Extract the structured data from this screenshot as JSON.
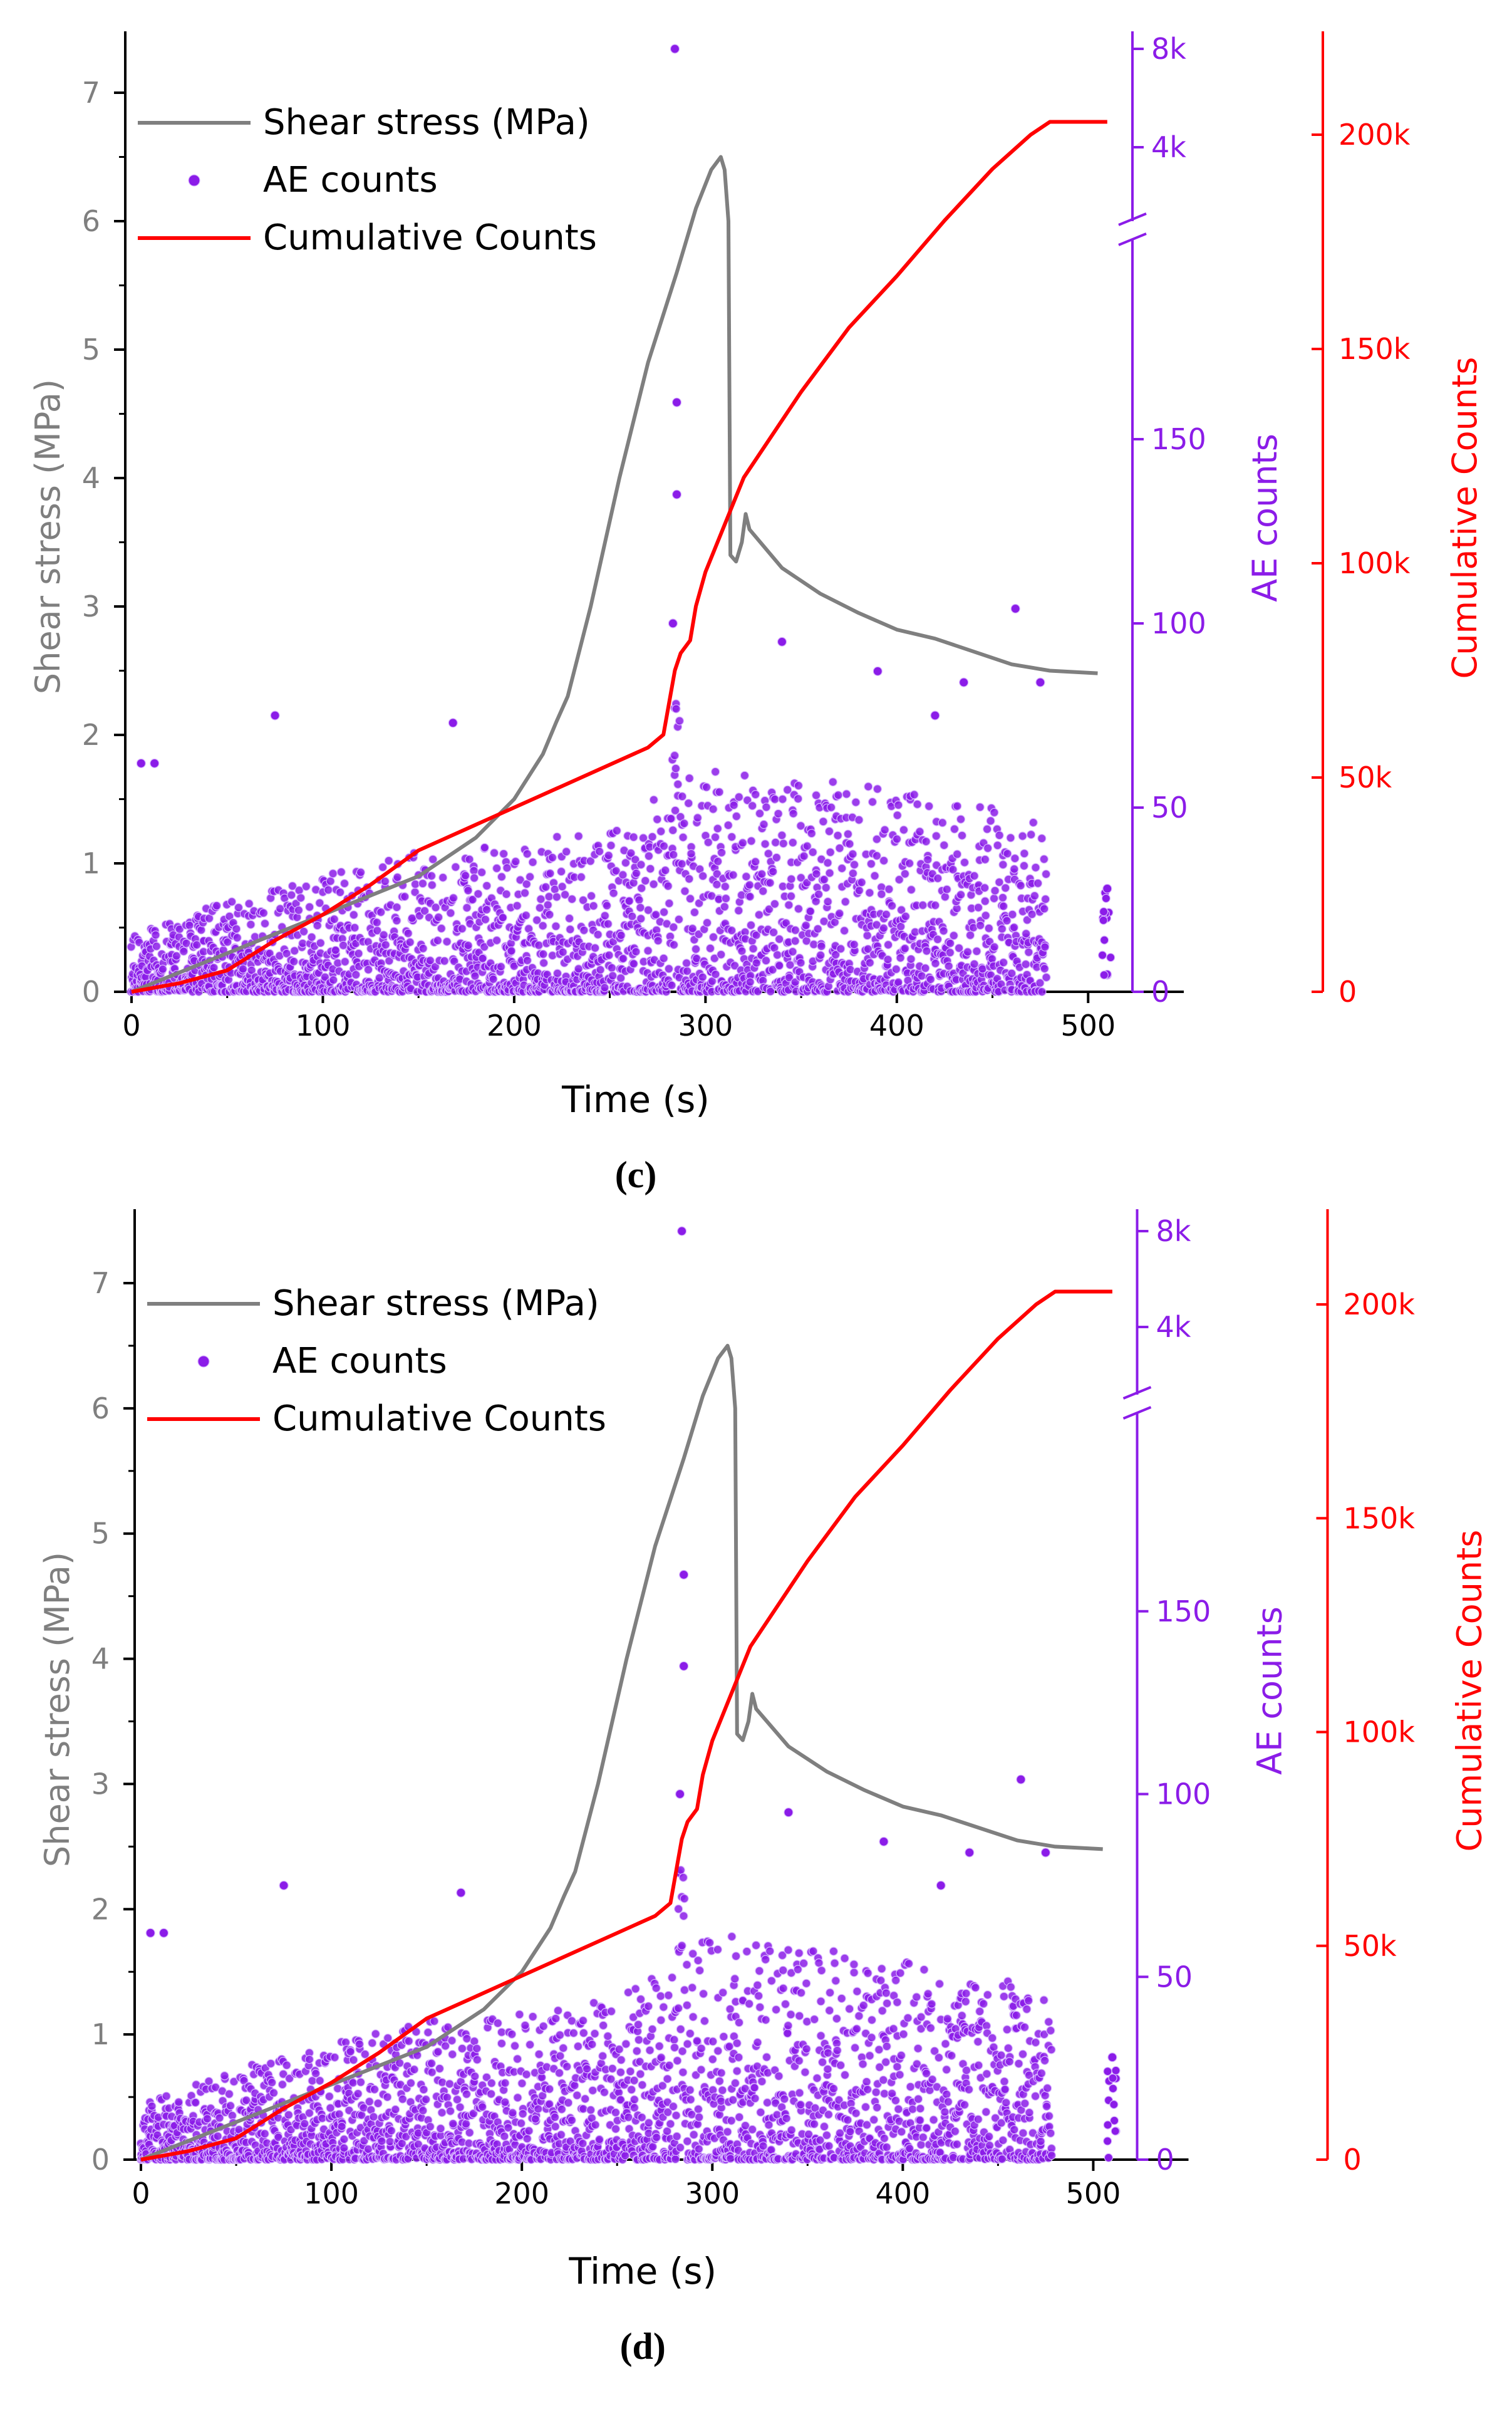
{
  "figure": {
    "panels": [
      "(c)",
      "(d)"
    ]
  },
  "colors": {
    "shear": "#7f7f7f",
    "ae": "#8b1ce8",
    "cumulative": "#ff0000",
    "axis": "#000000"
  },
  "chart_data": [
    {
      "panel": "(c)",
      "type": "line",
      "xlabel": "Time (s)",
      "xlim": [
        0,
        550
      ],
      "xticks": [
        0,
        100,
        200,
        300,
        400,
        500
      ],
      "y_left": {
        "label": "Shear stress (MPa)",
        "lim": [
          0,
          7.5
        ],
        "ticks": [
          0,
          1,
          2,
          3,
          4,
          5,
          6,
          7
        ]
      },
      "y_right_ae": {
        "label": "AE counts",
        "lower_range": [
          0,
          200
        ],
        "lower_ticks": [
          0,
          50,
          100,
          150
        ],
        "upper_range": [
          2000,
          9000
        ],
        "upper_ticks": [
          "4k",
          "8k"
        ],
        "broken_axis": true
      },
      "y_right_cum": {
        "label": "Cumulative Counts",
        "lim": [
          0,
          225000
        ],
        "ticks": [
          "0",
          "50k",
          "100k",
          "150k",
          "200k"
        ]
      },
      "legend": {
        "position": "top-left",
        "entries": [
          "Shear stress (MPa)",
          "AE counts",
          "Cumulative Counts"
        ]
      },
      "series": [
        {
          "name": "Shear stress (MPa)",
          "type": "line",
          "axis": "left",
          "points": [
            [
              0,
              0
            ],
            [
              50,
              0.3
            ],
            [
              100,
              0.6
            ],
            [
              150,
              0.9
            ],
            [
              180,
              1.2
            ],
            [
              200,
              1.5
            ],
            [
              215,
              1.85
            ],
            [
              222,
              2.1
            ],
            [
              228,
              2.3
            ],
            [
              240,
              3.0
            ],
            [
              255,
              4.0
            ],
            [
              270,
              4.9
            ],
            [
              285,
              5.6
            ],
            [
              295,
              6.1
            ],
            [
              303,
              6.4
            ],
            [
              308,
              6.5
            ],
            [
              310,
              6.4
            ],
            [
              312,
              6.0
            ],
            [
              313,
              3.4
            ],
            [
              316,
              3.35
            ],
            [
              319,
              3.5
            ],
            [
              321,
              3.72
            ],
            [
              323,
              3.6
            ],
            [
              340,
              3.3
            ],
            [
              360,
              3.1
            ],
            [
              380,
              2.95
            ],
            [
              400,
              2.82
            ],
            [
              420,
              2.75
            ],
            [
              440,
              2.65
            ],
            [
              460,
              2.55
            ],
            [
              480,
              2.5
            ],
            [
              505,
              2.48
            ]
          ]
        },
        {
          "name": "Cumulative Counts",
          "type": "line",
          "axis": "right_cum",
          "points": [
            [
              0,
              0
            ],
            [
              25,
              2000
            ],
            [
              50,
              5000
            ],
            [
              75,
              12000
            ],
            [
              100,
              18000
            ],
            [
              125,
              25000
            ],
            [
              150,
              33000
            ],
            [
              175,
              38000
            ],
            [
              200,
              43000
            ],
            [
              225,
              48000
            ],
            [
              250,
              53000
            ],
            [
              270,
              57000
            ],
            [
              278,
              60000
            ],
            [
              280,
              65000
            ],
            [
              282,
              70000
            ],
            [
              284,
              75000
            ],
            [
              287,
              79000
            ],
            [
              292,
              82000
            ],
            [
              295,
              90000
            ],
            [
              300,
              98000
            ],
            [
              320,
              120000
            ],
            [
              350,
              140000
            ],
            [
              375,
              155000
            ],
            [
              400,
              167000
            ],
            [
              425,
              180000
            ],
            [
              450,
              192000
            ],
            [
              470,
              200000
            ],
            [
              480,
              203000
            ],
            [
              490,
              203000
            ],
            [
              510,
              203000
            ]
          ]
        },
        {
          "name": "AE counts",
          "type": "scatter",
          "axis": "right_ae",
          "notable_points": [
            [
              284,
              8000
            ],
            [
              285,
              160
            ],
            [
              285,
              135
            ],
            [
              283,
              100
            ],
            [
              5,
              62
            ],
            [
              12,
              62
            ],
            [
              75,
              75
            ],
            [
              168,
              73
            ],
            [
              462,
              104
            ],
            [
              340,
              95
            ],
            [
              390,
              87
            ],
            [
              420,
              75
            ],
            [
              435,
              84
            ],
            [
              475,
              84
            ],
            [
              510,
              28
            ]
          ],
          "density_envelope": [
            [
              0,
              15
            ],
            [
              50,
              25
            ],
            [
              100,
              32
            ],
            [
              150,
              38
            ],
            [
              200,
              40
            ],
            [
              250,
              45
            ],
            [
              280,
              55
            ],
            [
              300,
              62
            ],
            [
              350,
              58
            ],
            [
              400,
              55
            ],
            [
              450,
              50
            ],
            [
              480,
              45
            ]
          ]
        }
      ]
    },
    {
      "panel": "(d)",
      "type": "line",
      "xlabel": "Time (s)",
      "xlim": [
        0,
        550
      ],
      "xticks": [
        0,
        100,
        200,
        300,
        400,
        500
      ],
      "y_left": {
        "label": "Shear stress (MPa)",
        "lim": [
          0,
          7.5
        ],
        "ticks": [
          0,
          1,
          2,
          3,
          4,
          5,
          6,
          7
        ]
      },
      "y_right_ae": {
        "label": "AE counts",
        "lower_range": [
          0,
          200
        ],
        "lower_ticks": [
          0,
          50,
          100,
          150
        ],
        "upper_range": [
          2000,
          9000
        ],
        "upper_ticks": [
          "4k",
          "8k"
        ],
        "broken_axis": true
      },
      "y_right_cum": {
        "label": "Cumulative Counts",
        "lim": [
          0,
          225000
        ],
        "ticks": [
          "0",
          "50k",
          "100k",
          "150k",
          "200k"
        ]
      },
      "legend": {
        "position": "top-left",
        "entries": [
          "Shear stress (MPa)",
          "AE counts",
          "Cumulative Counts"
        ]
      },
      "series": [
        {
          "name": "Shear stress (MPa)",
          "type": "line",
          "axis": "left",
          "points": [
            [
              0,
              0
            ],
            [
              50,
              0.3
            ],
            [
              100,
              0.6
            ],
            [
              150,
              0.9
            ],
            [
              180,
              1.2
            ],
            [
              200,
              1.5
            ],
            [
              215,
              1.85
            ],
            [
              222,
              2.1
            ],
            [
              228,
              2.3
            ],
            [
              240,
              3.0
            ],
            [
              255,
              4.0
            ],
            [
              270,
              4.9
            ],
            [
              285,
              5.6
            ],
            [
              295,
              6.1
            ],
            [
              303,
              6.4
            ],
            [
              308,
              6.5
            ],
            [
              310,
              6.4
            ],
            [
              312,
              6.0
            ],
            [
              313,
              3.4
            ],
            [
              316,
              3.35
            ],
            [
              319,
              3.5
            ],
            [
              321,
              3.72
            ],
            [
              323,
              3.6
            ],
            [
              340,
              3.3
            ],
            [
              360,
              3.1
            ],
            [
              380,
              2.95
            ],
            [
              400,
              2.82
            ],
            [
              420,
              2.75
            ],
            [
              440,
              2.65
            ],
            [
              460,
              2.55
            ],
            [
              480,
              2.5
            ],
            [
              505,
              2.48
            ]
          ]
        },
        {
          "name": "Cumulative Counts",
          "type": "line",
          "axis": "right_cum",
          "points": [
            [
              0,
              0
            ],
            [
              25,
              2000
            ],
            [
              50,
              5000
            ],
            [
              75,
              12000
            ],
            [
              100,
              18000
            ],
            [
              125,
              25000
            ],
            [
              150,
              33000
            ],
            [
              175,
              38000
            ],
            [
              200,
              43000
            ],
            [
              225,
              48000
            ],
            [
              250,
              53000
            ],
            [
              270,
              57000
            ],
            [
              278,
              60000
            ],
            [
              280,
              65000
            ],
            [
              282,
              70000
            ],
            [
              284,
              75000
            ],
            [
              287,
              79000
            ],
            [
              292,
              82000
            ],
            [
              295,
              90000
            ],
            [
              300,
              98000
            ],
            [
              320,
              120000
            ],
            [
              350,
              140000
            ],
            [
              375,
              155000
            ],
            [
              400,
              167000
            ],
            [
              425,
              180000
            ],
            [
              450,
              192000
            ],
            [
              470,
              200000
            ],
            [
              480,
              203000
            ],
            [
              490,
              203000
            ],
            [
              510,
              203000
            ]
          ]
        },
        {
          "name": "AE counts",
          "type": "scatter",
          "axis": "right_ae",
          "notable_points": [
            [
              284,
              8000
            ],
            [
              285,
              160
            ],
            [
              285,
              135
            ],
            [
              283,
              100
            ],
            [
              5,
              62
            ],
            [
              12,
              62
            ],
            [
              75,
              75
            ],
            [
              168,
              73
            ],
            [
              462,
              104
            ],
            [
              340,
              95
            ],
            [
              390,
              87
            ],
            [
              420,
              75
            ],
            [
              435,
              84
            ],
            [
              475,
              84
            ],
            [
              510,
              28
            ]
          ],
          "density_envelope": [
            [
              0,
              15
            ],
            [
              50,
              25
            ],
            [
              100,
              32
            ],
            [
              150,
              38
            ],
            [
              200,
              40
            ],
            [
              250,
              45
            ],
            [
              280,
              55
            ],
            [
              300,
              62
            ],
            [
              350,
              58
            ],
            [
              400,
              55
            ],
            [
              450,
              50
            ],
            [
              480,
              45
            ]
          ]
        }
      ]
    }
  ]
}
